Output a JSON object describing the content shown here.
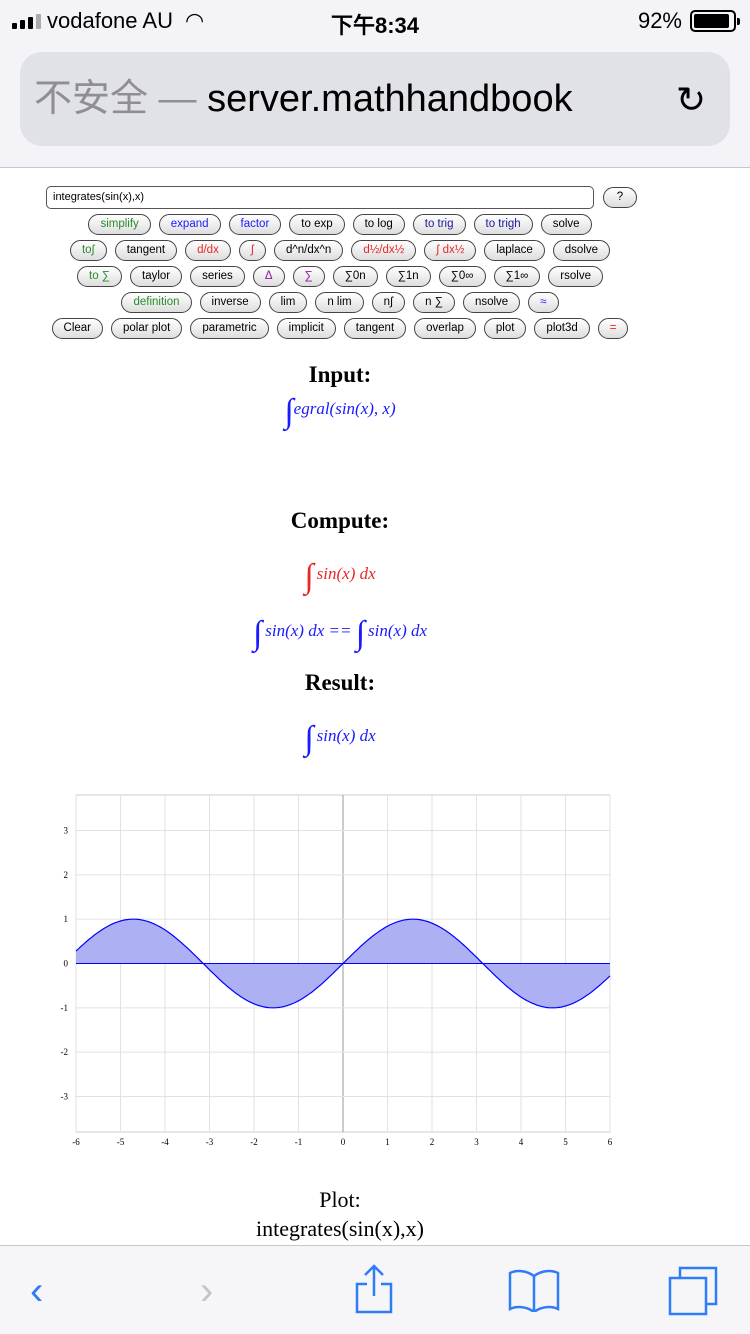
{
  "status_bar": {
    "carrier": "vodafone AU",
    "time": "下午8:34",
    "battery": "92%",
    "battery_level": 0.92
  },
  "address_bar": {
    "security": "不安全 —",
    "host": "server.mathhandbook"
  },
  "input": {
    "value": "integrates(sin(x),x)"
  },
  "help_button": "?",
  "button_rows": [
    [
      {
        "label": "simplify",
        "color": "g"
      },
      {
        "label": "expand",
        "color": "b"
      },
      {
        "label": "factor",
        "color": "b"
      },
      {
        "label": "to exp",
        "color": ""
      },
      {
        "label": "to log",
        "color": ""
      },
      {
        "label": "to trig",
        "color": "db"
      },
      {
        "label": "to trigh",
        "color": "db"
      },
      {
        "label": "solve",
        "color": ""
      }
    ],
    [
      {
        "label": "to∫",
        "color": "g"
      },
      {
        "label": "tangent",
        "color": ""
      },
      {
        "label": "d/dx",
        "color": "r"
      },
      {
        "label": "∫",
        "color": "r"
      },
      {
        "label": "d^n/dx^n",
        "color": ""
      },
      {
        "label": "d½/dx½",
        "color": "r"
      },
      {
        "label": "∫ dx½",
        "color": "r"
      },
      {
        "label": "laplace",
        "color": ""
      },
      {
        "label": "dsolve",
        "color": ""
      }
    ],
    [
      {
        "label": "to ∑",
        "color": "g"
      },
      {
        "label": "taylor",
        "color": ""
      },
      {
        "label": "series",
        "color": ""
      },
      {
        "label": "Δ",
        "color": "p"
      },
      {
        "label": "∑",
        "color": "p"
      },
      {
        "label": "∑0n",
        "color": ""
      },
      {
        "label": "∑1n",
        "color": ""
      },
      {
        "label": "∑0∞",
        "color": ""
      },
      {
        "label": "∑1∞",
        "color": ""
      },
      {
        "label": "rsolve",
        "color": ""
      }
    ],
    [
      {
        "label": "definition",
        "color": "g"
      },
      {
        "label": "inverse",
        "color": ""
      },
      {
        "label": "lim",
        "color": ""
      },
      {
        "label": "n lim",
        "color": ""
      },
      {
        "label": "n∫",
        "color": ""
      },
      {
        "label": "n ∑",
        "color": ""
      },
      {
        "label": "nsolve",
        "color": ""
      },
      {
        "label": "≈",
        "color": "b"
      }
    ],
    [
      {
        "label": "Clear",
        "color": ""
      },
      {
        "label": "polar plot",
        "color": ""
      },
      {
        "label": "parametric",
        "color": ""
      },
      {
        "label": "implicit",
        "color": ""
      },
      {
        "label": "tangent",
        "color": ""
      },
      {
        "label": "overlap",
        "color": ""
      },
      {
        "label": "plot",
        "color": ""
      },
      {
        "label": "plot3d",
        "color": ""
      },
      {
        "label": "=",
        "color": "r"
      }
    ]
  ],
  "sections": {
    "input_heading": "Input:",
    "input_expr": "egral(sin(x), x)",
    "compute_heading": "Compute:",
    "compute_expr": "sin(x) dx",
    "compute_eq_left": "sin(x) dx ==",
    "compute_eq_right": "sin(x) dx",
    "result_heading": "Result:",
    "result_expr": "sin(x) dx",
    "integral_sign": "∫"
  },
  "chart_data": {
    "type": "area",
    "function": "sin(x)",
    "x_range": [
      -6,
      6
    ],
    "y_range": [
      -3.8,
      3.8
    ],
    "x_ticks": [
      "-6",
      "-5",
      "-4",
      "-3",
      "-2",
      "-1",
      "0",
      "1",
      "2",
      "3",
      "4",
      "5",
      "6"
    ],
    "y_ticks": [
      "3",
      "2",
      "1",
      "0",
      "-1",
      "-2",
      "-3"
    ],
    "grid": true,
    "line_color": "#0000ff",
    "fill_color": "#aeb0f4"
  },
  "plot_caption": {
    "label": "Plot:",
    "expr": "integrates(sin(x),x)"
  },
  "toolbar": {
    "back": "back-icon",
    "forward": "forward-icon",
    "share": "share-icon",
    "bookmarks": "bookmarks-icon",
    "tabs": "tabs-icon"
  }
}
